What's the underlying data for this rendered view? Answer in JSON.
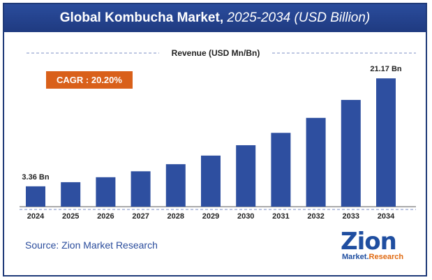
{
  "header": {
    "title_bold": "Global Kombucha Market,",
    "title_italic": "2025-2034 (USD Billion)"
  },
  "chart_data": {
    "type": "bar",
    "subtitle": "Revenue (USD Mn/Bn)",
    "cagr_label": "CAGR : 20.20%",
    "categories": [
      "2024",
      "2025",
      "2026",
      "2027",
      "2028",
      "2029",
      "2030",
      "2031",
      "2032",
      "2033",
      "2034"
    ],
    "values": [
      3.36,
      4.04,
      4.86,
      5.84,
      7.01,
      8.43,
      10.14,
      12.18,
      14.65,
      17.61,
      21.17
    ],
    "data_labels": {
      "first": "3.36 Bn",
      "last": "21.17 Bn"
    },
    "ylim": [
      0,
      23.5
    ],
    "bar_color": "#2e4fa0",
    "badge_color": "#d9601a"
  },
  "footer": {
    "source": "Source: Zion Market Research",
    "logo_main": "Zion",
    "logo_sub_1": "Market.",
    "logo_sub_2": "Research"
  }
}
